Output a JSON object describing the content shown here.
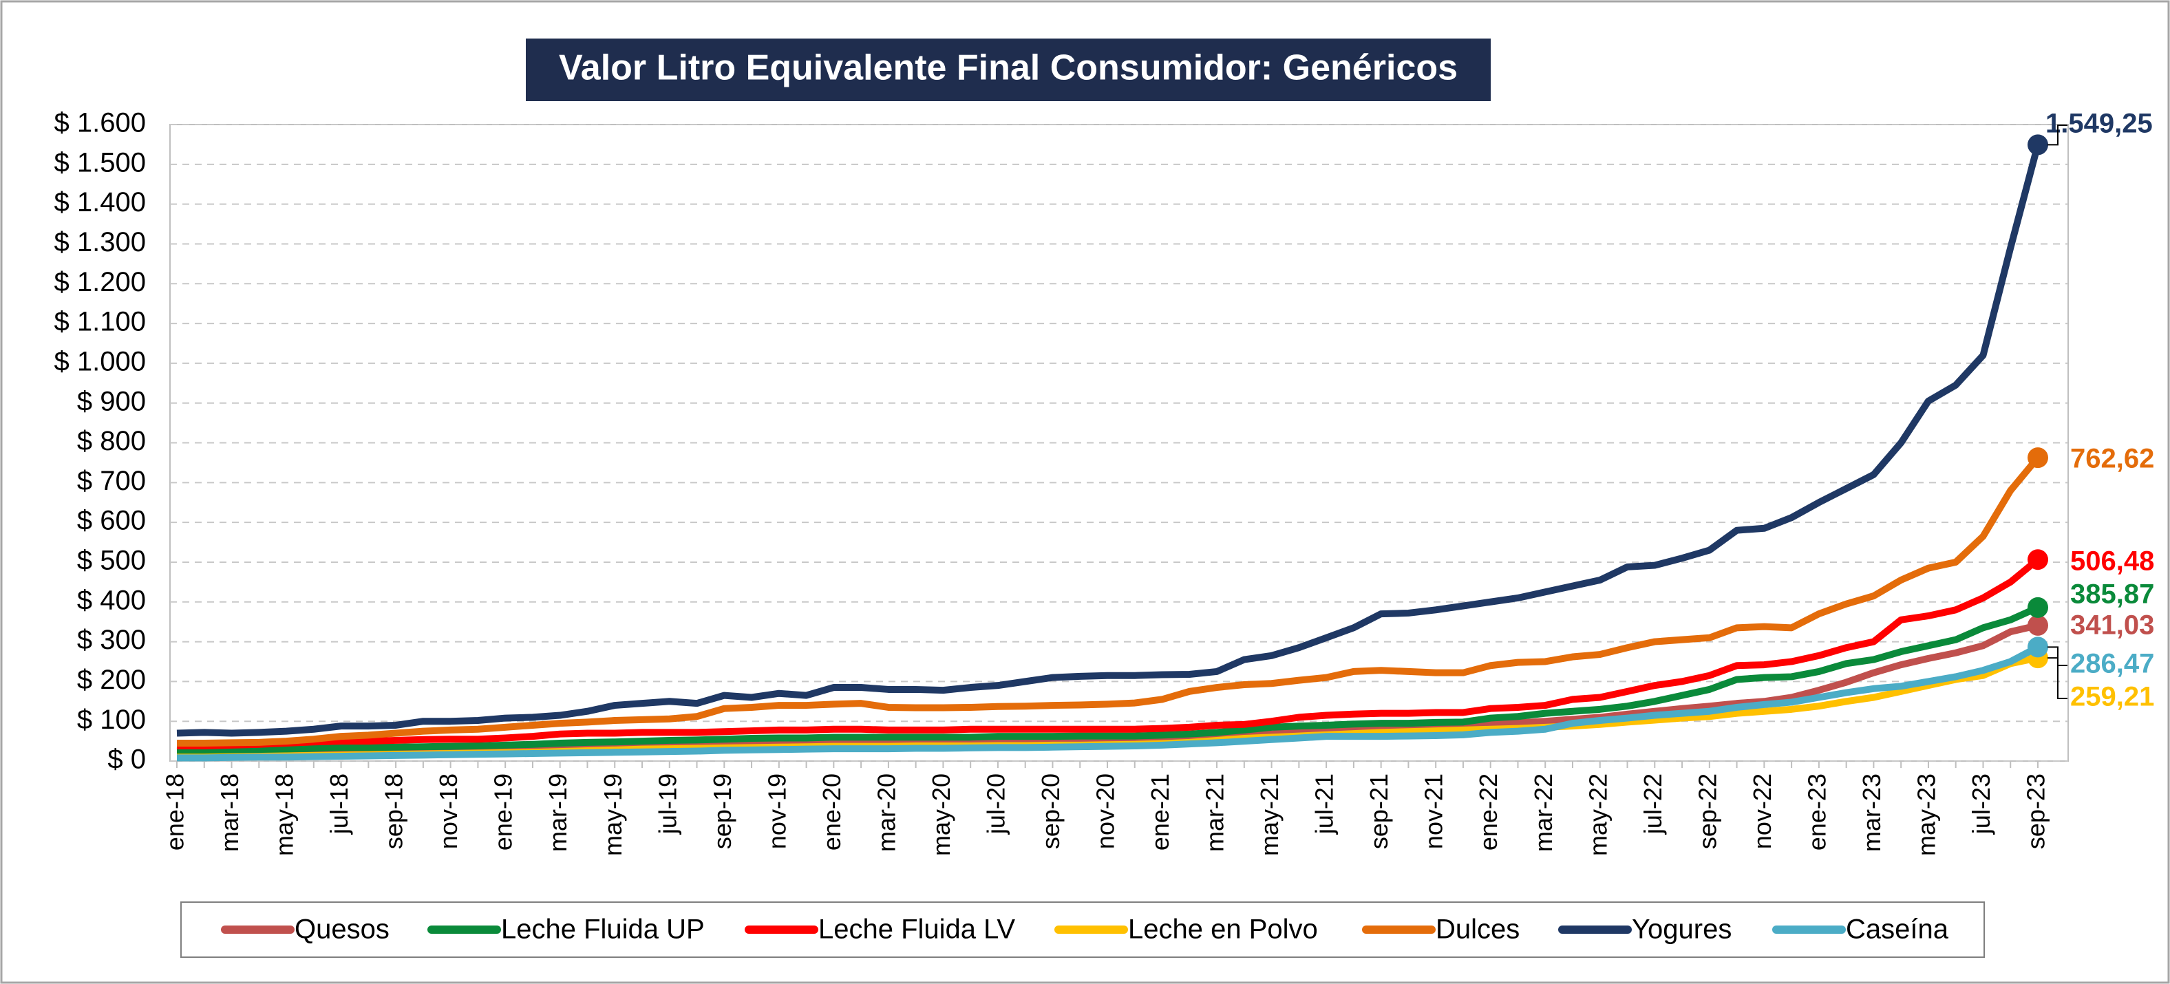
{
  "chart_data": {
    "type": "line",
    "title": "Valor Litro Equivalente Final Consumidor: Genéricos",
    "categories": [
      "ene-18",
      null,
      "mar-18",
      null,
      "may-18",
      null,
      "jul-18",
      null,
      "sep-18",
      null,
      "nov-18",
      null,
      "ene-19",
      null,
      "mar-19",
      null,
      "may-19",
      null,
      "jul-19",
      null,
      "sep-19",
      null,
      "nov-19",
      null,
      "ene-20",
      null,
      "mar-20",
      null,
      "may-20",
      null,
      "jul-20",
      null,
      "sep-20",
      null,
      "nov-20",
      null,
      "ene-21",
      null,
      "mar-21",
      null,
      "may-21",
      null,
      "jul-21",
      null,
      "sep-21",
      null,
      "nov-21",
      null,
      "ene-22",
      null,
      "mar-22",
      null,
      "may-22",
      null,
      "jul-22",
      null,
      "sep-22",
      null,
      "nov-22",
      null,
      "ene-23",
      null,
      "mar-23",
      null,
      "may-23",
      null,
      "jul-23",
      null,
      "sep-23"
    ],
    "ylim": [
      0,
      1600
    ],
    "yticks": [
      {
        "value": 0,
        "label": "$ 0"
      },
      {
        "value": 100,
        "label": "$ 100"
      },
      {
        "value": 200,
        "label": "$ 200"
      },
      {
        "value": 300,
        "label": "$ 300"
      },
      {
        "value": 400,
        "label": "$ 400"
      },
      {
        "value": 500,
        "label": "$ 500"
      },
      {
        "value": 600,
        "label": "$ 600"
      },
      {
        "value": 700,
        "label": "$ 700"
      },
      {
        "value": 800,
        "label": "$ 800"
      },
      {
        "value": 900,
        "label": "$ 900"
      },
      {
        "value": 1000,
        "label": "$ 1.000"
      },
      {
        "value": 1100,
        "label": "$ 1.100"
      },
      {
        "value": 1200,
        "label": "$ 1.200"
      },
      {
        "value": 1300,
        "label": "$ 1.300"
      },
      {
        "value": 1400,
        "label": "$ 1.400"
      },
      {
        "value": 1500,
        "label": "$ 1.500"
      },
      {
        "value": 1600,
        "label": "$ 1.600"
      }
    ],
    "grid": true,
    "legend": "bottom",
    "series": [
      {
        "name": "Quesos",
        "color": "#c0504d",
        "values": [
          20,
          20,
          21,
          22,
          23,
          24,
          25,
          26,
          27,
          28,
          29,
          30,
          31,
          33,
          35,
          37,
          38,
          40,
          41,
          42,
          43,
          44,
          45,
          45,
          46,
          46,
          46,
          46,
          46,
          47,
          47,
          48,
          48,
          48,
          49,
          49,
          50,
          53,
          58,
          63,
          68,
          72,
          76,
          80,
          83,
          85,
          87,
          88,
          92,
          96,
          100,
          105,
          110,
          118,
          125,
          132,
          138,
          145,
          150,
          160,
          178,
          198,
          222,
          242,
          258,
          272,
          290,
          325,
          341.03
        ],
        "value_labels": [
          null,
          null,
          null,
          null,
          null,
          null,
          null,
          null,
          null,
          null,
          null,
          null,
          null,
          null,
          null,
          null,
          null,
          null,
          null,
          null,
          null,
          null,
          null,
          null,
          null,
          null,
          null,
          null,
          null,
          null,
          null,
          null,
          null,
          null,
          null,
          null,
          null,
          null,
          null,
          null,
          null,
          null,
          null,
          null,
          null,
          null,
          null,
          null,
          null,
          null,
          null,
          null,
          null,
          null,
          null,
          null,
          null,
          null,
          null,
          null,
          null,
          null,
          null,
          null,
          null,
          null,
          null,
          null,
          "341,03"
        ]
      },
      {
        "name": "Leche Fluida UP",
        "color": "#0a8a3a",
        "values": [
          25,
          26,
          27,
          28,
          30,
          32,
          34,
          34,
          35,
          36,
          37,
          38,
          40,
          42,
          45,
          47,
          48,
          50,
          52,
          53,
          55,
          57,
          58,
          58,
          60,
          60,
          60,
          60,
          60,
          60,
          62,
          62,
          62,
          63,
          63,
          63,
          65,
          68,
          72,
          78,
          85,
          88,
          90,
          93,
          95,
          95,
          97,
          98,
          108,
          112,
          120,
          125,
          130,
          138,
          150,
          165,
          180,
          205,
          210,
          212,
          225,
          245,
          255,
          275,
          290,
          305,
          335,
          355,
          385.87
        ],
        "value_labels": [
          null,
          null,
          null,
          null,
          null,
          null,
          null,
          null,
          null,
          null,
          null,
          null,
          null,
          null,
          null,
          null,
          null,
          null,
          null,
          null,
          null,
          null,
          null,
          null,
          null,
          null,
          null,
          null,
          null,
          null,
          null,
          null,
          null,
          null,
          null,
          null,
          null,
          null,
          null,
          null,
          null,
          null,
          null,
          null,
          null,
          null,
          null,
          null,
          null,
          null,
          null,
          null,
          null,
          null,
          null,
          null,
          null,
          null,
          null,
          null,
          null,
          null,
          null,
          null,
          null,
          null,
          null,
          null,
          "385,87"
        ]
      },
      {
        "name": "Leche Fluida LV",
        "color": "#ff0000",
        "values": [
          38,
          38,
          40,
          42,
          45,
          48,
          50,
          50,
          52,
          54,
          55,
          55,
          58,
          62,
          68,
          70,
          70,
          72,
          72,
          72,
          74,
          76,
          78,
          78,
          80,
          80,
          78,
          78,
          78,
          80,
          80,
          80,
          80,
          80,
          80,
          80,
          82,
          85,
          90,
          92,
          100,
          110,
          115,
          118,
          120,
          120,
          122,
          122,
          132,
          135,
          140,
          155,
          160,
          175,
          190,
          200,
          215,
          240,
          242,
          250,
          265,
          285,
          300,
          355,
          365,
          380,
          410,
          450,
          506.48
        ],
        "value_labels": [
          null,
          null,
          null,
          null,
          null,
          null,
          null,
          null,
          null,
          null,
          null,
          null,
          null,
          null,
          null,
          null,
          null,
          null,
          null,
          null,
          null,
          null,
          null,
          null,
          null,
          null,
          null,
          null,
          null,
          null,
          null,
          null,
          null,
          null,
          null,
          null,
          null,
          null,
          null,
          null,
          null,
          null,
          null,
          null,
          null,
          null,
          null,
          null,
          null,
          null,
          null,
          null,
          null,
          null,
          null,
          null,
          null,
          null,
          null,
          null,
          null,
          null,
          null,
          null,
          null,
          null,
          null,
          null,
          "506,48"
        ]
      },
      {
        "name": "Leche en Polvo",
        "color": "#ffc000",
        "values": [
          10,
          10,
          11,
          12,
          13,
          14,
          15,
          16,
          17,
          18,
          19,
          20,
          21,
          22,
          24,
          26,
          28,
          30,
          31,
          32,
          33,
          34,
          35,
          36,
          37,
          37,
          37,
          38,
          38,
          38,
          39,
          39,
          40,
          40,
          41,
          42,
          44,
          47,
          52,
          57,
          60,
          63,
          66,
          69,
          72,
          74,
          76,
          78,
          80,
          82,
          85,
          88,
          92,
          98,
          103,
          108,
          112,
          120,
          125,
          130,
          138,
          150,
          160,
          175,
          190,
          205,
          215,
          245,
          259.21
        ],
        "value_labels": [
          null,
          null,
          null,
          null,
          null,
          null,
          null,
          null,
          null,
          null,
          null,
          null,
          null,
          null,
          null,
          null,
          null,
          null,
          null,
          null,
          null,
          null,
          null,
          null,
          null,
          null,
          null,
          null,
          null,
          null,
          null,
          null,
          null,
          null,
          null,
          null,
          null,
          null,
          null,
          null,
          null,
          null,
          null,
          null,
          null,
          null,
          null,
          null,
          null,
          null,
          null,
          null,
          null,
          null,
          null,
          null,
          null,
          null,
          null,
          null,
          null,
          null,
          null,
          null,
          null,
          null,
          null,
          null,
          "259,21"
        ]
      },
      {
        "name": "Dulces",
        "color": "#e46c0a",
        "values": [
          45,
          45,
          46,
          47,
          50,
          55,
          62,
          65,
          70,
          75,
          78,
          80,
          85,
          90,
          95,
          98,
          102,
          104,
          106,
          112,
          132,
          135,
          140,
          140,
          143,
          145,
          135,
          134,
          134,
          135,
          137,
          138,
          140,
          141,
          143,
          146,
          155,
          175,
          185,
          192,
          195,
          203,
          210,
          225,
          228,
          225,
          222,
          222,
          240,
          248,
          250,
          262,
          268,
          285,
          300,
          305,
          310,
          335,
          338,
          335,
          370,
          395,
          415,
          455,
          485,
          500,
          565,
          680,
          762.62
        ],
        "value_labels": [
          null,
          null,
          null,
          null,
          null,
          null,
          null,
          null,
          null,
          null,
          null,
          null,
          null,
          null,
          null,
          null,
          null,
          null,
          null,
          null,
          null,
          null,
          null,
          null,
          null,
          null,
          null,
          null,
          null,
          null,
          null,
          null,
          null,
          null,
          null,
          null,
          null,
          null,
          null,
          null,
          null,
          null,
          null,
          null,
          null,
          null,
          null,
          null,
          null,
          null,
          null,
          null,
          null,
          null,
          null,
          null,
          null,
          null,
          null,
          null,
          null,
          null,
          null,
          null,
          null,
          null,
          null,
          null,
          "762,62"
        ]
      },
      {
        "name": "Yogures",
        "color": "#1f3864",
        "values": [
          70,
          72,
          70,
          72,
          75,
          80,
          88,
          88,
          90,
          100,
          100,
          102,
          108,
          110,
          115,
          125,
          140,
          145,
          150,
          145,
          165,
          160,
          170,
          165,
          185,
          185,
          180,
          180,
          178,
          185,
          190,
          200,
          210,
          213,
          215,
          215,
          217,
          218,
          225,
          255,
          265,
          285,
          310,
          335,
          370,
          372,
          380,
          390,
          400,
          410,
          425,
          440,
          455,
          488,
          492,
          510,
          530,
          580,
          585,
          612,
          650,
          685,
          720,
          800,
          905,
          945,
          1020,
          1290,
          1549.25
        ],
        "value_labels": [
          null,
          null,
          null,
          null,
          null,
          null,
          null,
          null,
          null,
          null,
          null,
          null,
          null,
          null,
          null,
          null,
          null,
          null,
          null,
          null,
          null,
          null,
          null,
          null,
          null,
          null,
          null,
          null,
          null,
          null,
          null,
          null,
          null,
          null,
          null,
          null,
          null,
          null,
          null,
          null,
          null,
          null,
          null,
          null,
          null,
          null,
          null,
          null,
          null,
          null,
          null,
          null,
          null,
          null,
          null,
          null,
          null,
          null,
          null,
          null,
          null,
          null,
          null,
          null,
          null,
          null,
          null,
          null,
          "1.549,25"
        ]
      },
      {
        "name": "Caseína",
        "color": "#4bacc6",
        "values": [
          8,
          8,
          9,
          10,
          10,
          11,
          12,
          13,
          14,
          15,
          16,
          17,
          18,
          19,
          20,
          21,
          22,
          23,
          24,
          25,
          27,
          28,
          29,
          30,
          31,
          31,
          31,
          32,
          32,
          33,
          34,
          34,
          35,
          36,
          37,
          38,
          40,
          43,
          46,
          50,
          54,
          58,
          62,
          62,
          62,
          63,
          64,
          66,
          72,
          75,
          80,
          95,
          102,
          108,
          115,
          120,
          125,
          135,
          142,
          148,
          160,
          172,
          182,
          188,
          200,
          212,
          228,
          250,
          286.47
        ],
        "value_labels": [
          null,
          null,
          null,
          null,
          null,
          null,
          null,
          null,
          null,
          null,
          null,
          null,
          null,
          null,
          null,
          null,
          null,
          null,
          null,
          null,
          null,
          null,
          null,
          null,
          null,
          null,
          null,
          null,
          null,
          null,
          null,
          null,
          null,
          null,
          null,
          null,
          null,
          null,
          null,
          null,
          null,
          null,
          null,
          null,
          null,
          null,
          null,
          null,
          null,
          null,
          null,
          null,
          null,
          null,
          null,
          null,
          null,
          null,
          null,
          null,
          null,
          null,
          null,
          null,
          null,
          null,
          null,
          null,
          "286,47"
        ]
      }
    ]
  }
}
